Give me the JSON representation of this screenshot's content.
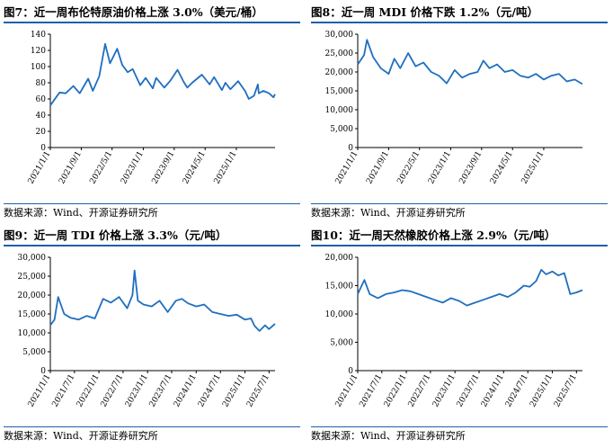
{
  "charts": [
    {
      "title": "图7：近一周布伦特原油价格上涨 3.0%（美元/桶）",
      "source": "数据来源：Wind、开源证券研究所",
      "chart_data": {
        "type": "line",
        "color": "#1f6fbf",
        "ylim": [
          0,
          140
        ],
        "yticks": [
          "0",
          "20",
          "40",
          "60",
          "80",
          "100",
          "120",
          "140"
        ],
        "yticks_values": [
          0,
          20,
          40,
          60,
          80,
          100,
          120,
          140
        ],
        "xlim": [
          "2021-01-01",
          "2025-11-01"
        ],
        "xticks": [
          "2021/1/1",
          "2021/9/1",
          "2022/5/1",
          "2023/1/1",
          "2023/9/1",
          "2024/5/1",
          "2025/1/1"
        ],
        "xticks_dates": [
          "2021-01-01",
          "2021-09-01",
          "2022-05-01",
          "2023-01-01",
          "2023-09-01",
          "2024-05-01",
          "2025-01-01"
        ],
        "series": [
          {
            "x": [
              "2021-01-01",
              "2021-02-15",
              "2021-03-15",
              "2021-05-01",
              "2021-07-01",
              "2021-08-20",
              "2021-10-25",
              "2021-12-01",
              "2022-01-20",
              "2022-03-08",
              "2022-04-15",
              "2022-06-10",
              "2022-07-20",
              "2022-09-01",
              "2022-10-10",
              "2022-12-08",
              "2023-01-20",
              "2023-03-17",
              "2023-04-12",
              "2023-06-15",
              "2023-07-30",
              "2023-09-27",
              "2023-11-15",
              "2023-12-13",
              "2024-01-20",
              "2024-04-05",
              "2024-06-05",
              "2024-07-10",
              "2024-09-10",
              "2024-10-07",
              "2024-11-15",
              "2025-01-15",
              "2025-03-10",
              "2025-04-09",
              "2025-05-20",
              "2025-06-19",
              "2025-06-26",
              "2025-08-01",
              "2025-09-15",
              "2025-10-20",
              "2025-10-31"
            ],
            "y": [
              52,
              62,
              68,
              67,
              76,
              67,
              85,
              70,
              88,
              128,
              104,
              122,
              102,
              93,
              97,
              77,
              86,
              73,
              86,
              74,
              82,
              96,
              81,
              74,
              80,
              90,
              78,
              87,
              71,
              80,
              72,
              82,
              70,
              60,
              64,
              78,
              67,
              70,
              67,
              62,
              66
            ]
          }
        ]
      }
    },
    {
      "title": "图8：近一周 MDI 价格下跌 1.2%（元/吨）",
      "source": "数据来源：Wind、开源证券研究所",
      "chart_data": {
        "type": "line",
        "color": "#1f6fbf",
        "ylim": [
          0,
          30000
        ],
        "yticks": [
          "0",
          "5,000",
          "10,000",
          "15,000",
          "20,000",
          "25,000",
          "30,000"
        ],
        "yticks_values": [
          0,
          5000,
          10000,
          15000,
          20000,
          25000,
          30000
        ],
        "xlim": [
          "2021-01-01",
          "2025-11-01"
        ],
        "xticks": [
          "2021/1/1",
          "2021/9/1",
          "2022/5/1",
          "2023/1/1",
          "2023/9/1",
          "2024/5/1",
          "2025/1/1"
        ],
        "xticks_dates": [
          "2021-01-01",
          "2021-09-01",
          "2022-05-01",
          "2023-01-01",
          "2023-09-01",
          "2024-05-01",
          "2025-01-01"
        ],
        "series": [
          {
            "x": [
              "2021-01-01",
              "2021-02-20",
              "2021-03-15",
              "2021-05-01",
              "2021-07-01",
              "2021-09-01",
              "2021-10-15",
              "2021-12-01",
              "2022-02-01",
              "2022-04-01",
              "2022-06-01",
              "2022-08-01",
              "2022-10-01",
              "2022-12-01",
              "2023-02-01",
              "2023-04-01",
              "2023-06-01",
              "2023-08-01",
              "2023-09-15",
              "2023-11-01",
              "2024-01-01",
              "2024-03-01",
              "2024-05-01",
              "2024-07-01",
              "2024-09-01",
              "2024-11-01",
              "2025-01-01",
              "2025-03-01",
              "2025-05-01",
              "2025-07-01",
              "2025-09-01",
              "2025-10-31"
            ],
            "y": [
              22000,
              24500,
              28500,
              24000,
              21000,
              19500,
              23500,
              21000,
              25000,
              21500,
              22500,
              20000,
              19000,
              17000,
              20500,
              18500,
              19500,
              20000,
              23000,
              21000,
              22000,
              20000,
              20500,
              19000,
              18500,
              19500,
              18000,
              19000,
              19500,
              17500,
              18000,
              16800
            ]
          }
        ]
      }
    },
    {
      "title": "图9：近一周 TDI 价格上涨 3.3%（元/吨）",
      "source": "数据来源：Wind、开源证券研究所",
      "chart_data": {
        "type": "line",
        "color": "#1f6fbf",
        "ylim": [
          0,
          30000
        ],
        "yticks": [
          "0",
          "5,000",
          "10,000",
          "15,000",
          "20,000",
          "25,000",
          "30,000"
        ],
        "yticks_values": [
          0,
          5000,
          10000,
          15000,
          20000,
          25000,
          30000
        ],
        "xlim": [
          "2021-01-01",
          "2025-08-15"
        ],
        "xticks": [
          "2021/1/1",
          "2021/7/1",
          "2022/1/1",
          "2022/7/1",
          "2023/1/1",
          "2023/7/1",
          "2024/1/1",
          "2024/7/1",
          "2025/1/1",
          "2025/7/1"
        ],
        "xticks_dates": [
          "2021-01-01",
          "2021-07-01",
          "2022-01-01",
          "2022-07-01",
          "2023-01-01",
          "2023-07-01",
          "2024-01-01",
          "2024-07-01",
          "2025-01-01",
          "2025-07-01"
        ],
        "series": [
          {
            "x": [
              "2021-01-01",
              "2021-02-01",
              "2021-03-01",
              "2021-04-15",
              "2021-06-01",
              "2021-08-01",
              "2021-10-01",
              "2021-12-01",
              "2022-02-01",
              "2022-04-01",
              "2022-06-01",
              "2022-08-01",
              "2022-09-10",
              "2022-09-25",
              "2022-10-20",
              "2022-12-01",
              "2023-02-01",
              "2023-04-01",
              "2023-06-01",
              "2023-08-01",
              "2023-09-15",
              "2023-11-01",
              "2024-01-01",
              "2024-03-01",
              "2024-05-01",
              "2024-07-01",
              "2024-09-01",
              "2024-11-01",
              "2025-01-01",
              "2025-02-15",
              "2025-03-15",
              "2025-04-20",
              "2025-06-01",
              "2025-07-01",
              "2025-08-15"
            ],
            "y": [
              12000,
              13500,
              19500,
              15000,
              14000,
              13500,
              14500,
              13800,
              19000,
              18000,
              19500,
              16500,
              20000,
              26500,
              18500,
              17500,
              17000,
              18500,
              15500,
              18500,
              19000,
              17800,
              17000,
              17500,
              15500,
              15000,
              14500,
              14800,
              13500,
              13800,
              11800,
              10500,
              12000,
              11000,
              12400
            ]
          }
        ]
      }
    },
    {
      "title": "图10：近一周天然橡胶价格上涨 2.9%（元/吨）",
      "source": "数据来源：Wind、开源证券研究所",
      "chart_data": {
        "type": "line",
        "color": "#1f6fbf",
        "ylim": [
          0,
          20000
        ],
        "yticks": [
          "0",
          "5,000",
          "10,000",
          "15,000",
          "20,000"
        ],
        "yticks_values": [
          0,
          5000,
          10000,
          15000,
          20000
        ],
        "xlim": [
          "2021-01-01",
          "2025-08-15"
        ],
        "xticks": [
          "2021/1/1",
          "2021/7/1",
          "2022/1/1",
          "2022/7/1",
          "2023/1/1",
          "2023/7/1",
          "2024/1/1",
          "2024/7/1",
          "2025/1/1",
          "2025/7/1"
        ],
        "xticks_dates": [
          "2021-01-01",
          "2021-07-01",
          "2022-01-01",
          "2022-07-01",
          "2023-01-01",
          "2023-07-01",
          "2024-01-01",
          "2024-07-01",
          "2025-01-01",
          "2025-07-01"
        ],
        "series": [
          {
            "x": [
              "2021-01-01",
              "2021-02-20",
              "2021-04-01",
              "2021-06-01",
              "2021-08-01",
              "2021-10-01",
              "2021-12-01",
              "2022-02-01",
              "2022-04-01",
              "2022-06-01",
              "2022-08-01",
              "2022-10-01",
              "2022-12-01",
              "2023-02-01",
              "2023-04-01",
              "2023-06-01",
              "2023-08-01",
              "2023-10-01",
              "2023-12-01",
              "2024-02-01",
              "2024-04-01",
              "2024-06-01",
              "2024-07-15",
              "2024-09-01",
              "2024-10-10",
              "2024-11-15",
              "2025-01-01",
              "2025-02-15",
              "2025-04-01",
              "2025-05-15",
              "2025-07-01",
              "2025-08-15"
            ],
            "y": [
              13500,
              16000,
              13500,
              12800,
              13500,
              13800,
              14200,
              14000,
              13500,
              13000,
              12500,
              12000,
              12800,
              12300,
              11500,
              12000,
              12500,
              13000,
              13500,
              13000,
              13800,
              15000,
              14800,
              15800,
              17800,
              17000,
              17500,
              16800,
              17200,
              13500,
              13800,
              14200
            ]
          }
        ]
      }
    }
  ]
}
